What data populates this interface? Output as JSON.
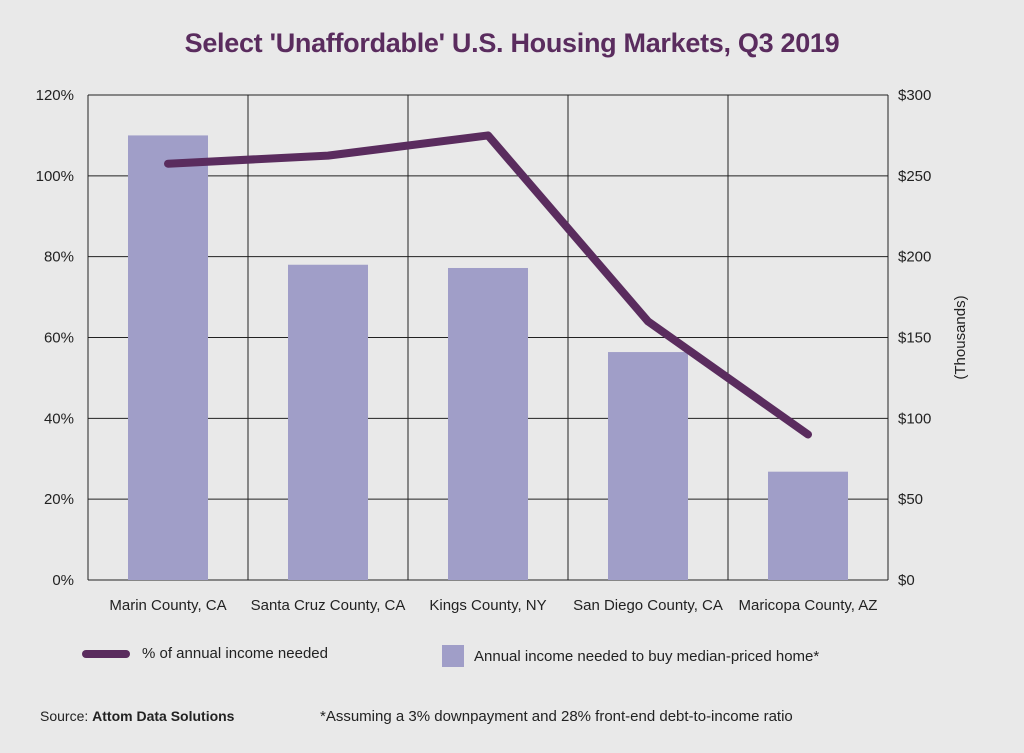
{
  "title": "Select 'Unaffordable' U.S. Housing Markets, Q3 2019",
  "chart_data": {
    "type": "bar",
    "title": "Select 'Unaffordable' U.S. Housing Markets, Q3 2019",
    "categories": [
      "Marin County, CA",
      "Santa Cruz County, CA",
      "Kings County, NY",
      "San Diego County, CA",
      "Maricopa County, AZ"
    ],
    "series": [
      {
        "name": "Annual income needed to buy median-priced home*",
        "type": "bar",
        "axis": "right",
        "values": [
          275,
          195,
          193,
          141,
          67
        ]
      },
      {
        "name": "% of annual income needed",
        "type": "line",
        "axis": "left",
        "values": [
          103,
          105,
          110,
          64,
          36
        ]
      }
    ],
    "y_left": {
      "ticks": [
        "0%",
        "20%",
        "40%",
        "60%",
        "80%",
        "100%",
        "120%"
      ],
      "ylim": [
        0,
        120
      ]
    },
    "y_right": {
      "ticks": [
        "$0",
        "$50",
        "$100",
        "$150",
        "$200",
        "$250",
        "$300"
      ],
      "ylim": [
        0,
        300
      ],
      "label": "(Thousands)"
    },
    "grid": true,
    "colors": {
      "bar": "#a09ec8",
      "line": "#5a2c5e",
      "grid": "#222222"
    },
    "legend_placement": "bottom"
  },
  "legend": {
    "line_label": "% of annual income needed",
    "bar_label": "Annual income needed to buy median-priced home*"
  },
  "footer": {
    "source_prefix": "Source: ",
    "source_name": "Attom Data Solutions",
    "footnote": "*Assuming a 3% downpayment and 28% front-end debt-to-income ratio"
  }
}
